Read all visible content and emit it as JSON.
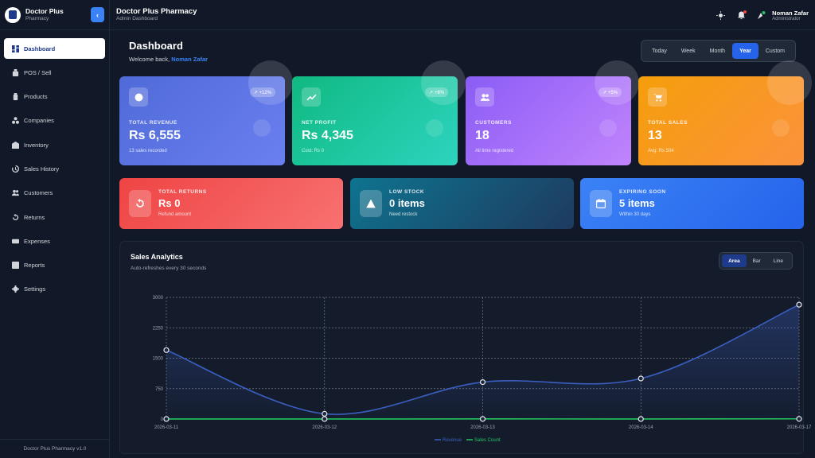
{
  "brand": {
    "title": "Doctor Plus",
    "subtitle": "Pharmacy"
  },
  "sidebar": {
    "items": [
      {
        "label": "Dashboard",
        "icon": "dashboard-icon",
        "active": true
      },
      {
        "label": "POS / Sell",
        "icon": "pos-icon"
      },
      {
        "label": "Products",
        "icon": "products-icon"
      },
      {
        "label": "Companies",
        "icon": "companies-icon"
      },
      {
        "label": "Inventory",
        "icon": "inventory-icon"
      },
      {
        "label": "Sales History",
        "icon": "history-icon"
      },
      {
        "label": "Customers",
        "icon": "customers-icon"
      },
      {
        "label": "Returns",
        "icon": "returns-icon"
      },
      {
        "label": "Expenses",
        "icon": "expenses-icon"
      },
      {
        "label": "Reports",
        "icon": "reports-icon"
      },
      {
        "label": "Settings",
        "icon": "settings-icon"
      }
    ],
    "footer": "Doctor Plus Pharmacy v1.0"
  },
  "topbar": {
    "title": "Doctor Plus Pharmacy",
    "subtitle": "Admin Dashboard",
    "user_name": "Noman Zafar",
    "user_role": "Administrator"
  },
  "page": {
    "title": "Dashboard",
    "welcome_prefix": "Welcome back,",
    "welcome_name": "Noman Zafar",
    "ranges": [
      "Today",
      "Week",
      "Month",
      "Year",
      "Custom"
    ],
    "active_range": "Year"
  },
  "stats": [
    {
      "label": "TOTAL REVENUE",
      "value": "Rs 6,555",
      "sub": "13 sales recorded",
      "badge": "↗ +12%",
      "color_from": "#4f6bd8",
      "color_to": "#6b7ff0"
    },
    {
      "label": "NET PROFIT",
      "value": "Rs 4,345",
      "sub": "Cost: Rs 0",
      "badge": "↗ +8%",
      "color_from": "#10b981",
      "color_to": "#2dd4bf"
    },
    {
      "label": "CUSTOMERS",
      "value": "18",
      "sub": "All time registered",
      "badge": "↗ +5%",
      "color_from": "#8b5cf6",
      "color_to": "#c084fc"
    },
    {
      "label": "TOTAL SALES",
      "value": "13",
      "sub": "Avg: Rs 504",
      "badge": "",
      "color_from": "#f59e0b",
      "color_to": "#fb923c"
    }
  ],
  "secondary": [
    {
      "label": "TOTAL RETURNS",
      "value": "Rs 0",
      "sub": "Refund amount",
      "color_from": "#ef4444",
      "color_to": "#f87171"
    },
    {
      "label": "LOW STOCK",
      "value": "0 items",
      "sub": "Need restock",
      "color_from": "#0e7490",
      "color_to": "#1e3a5f"
    },
    {
      "label": "EXPIRING SOON",
      "value": "5 items",
      "sub": "Within 30 days",
      "color_from": "#3b82f6",
      "color_to": "#2563eb"
    }
  ],
  "analytics": {
    "title": "Sales Analytics",
    "subtitle": "Auto-refreshes every 30 seconds",
    "types": [
      "Area",
      "Bar",
      "Line"
    ],
    "active_type": "Area"
  },
  "chart_data": {
    "type": "area",
    "x": [
      "2026-03-11",
      "2026-03-12",
      "2026-03-13",
      "2026-03-14",
      "2026-03-17"
    ],
    "series": [
      {
        "name": "Revenue",
        "values": [
          1700,
          130,
          910,
          1000,
          2820
        ],
        "color": "#3b5fc0"
      },
      {
        "name": "Sales Count",
        "values": [
          2,
          1,
          3,
          2,
          5
        ],
        "color": "#22c55e"
      }
    ],
    "yticks": [
      0,
      750,
      1500,
      2250,
      3000
    ],
    "ylim": [
      0,
      3000
    ],
    "grid": true,
    "legend": "bottom-center"
  }
}
